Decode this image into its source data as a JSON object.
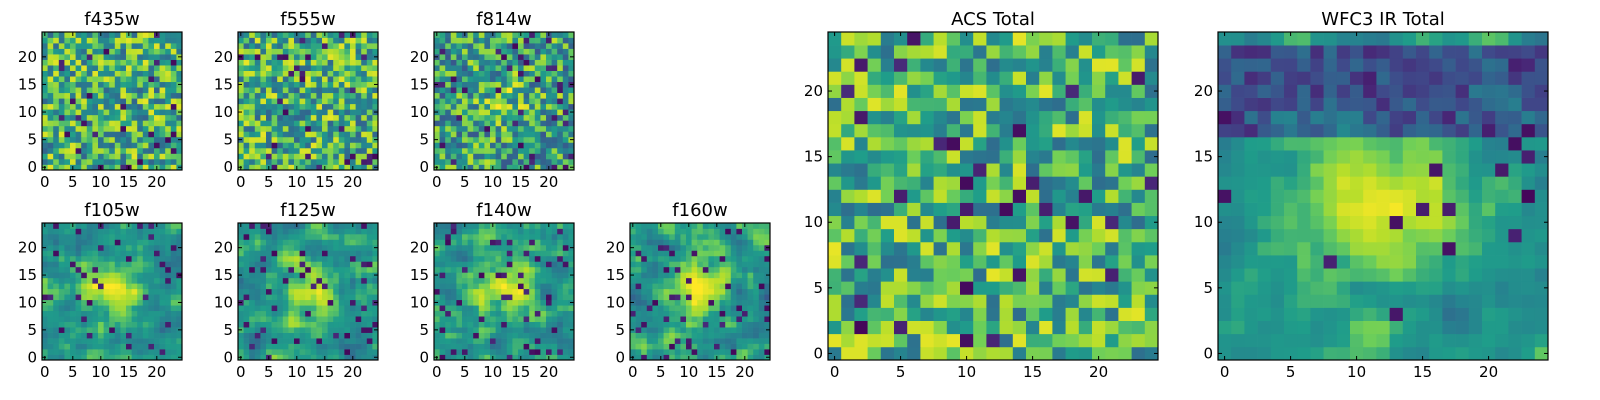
{
  "colormap": "viridis",
  "colormap_stops": [
    "#440154",
    "#482777",
    "#3f4a8a",
    "#31678e",
    "#26838f",
    "#1f9d8a",
    "#6cce5a",
    "#b6de2b",
    "#fee825"
  ],
  "axes_color": "#000000",
  "chart_data": [
    {
      "type": "heatmap",
      "title": "f435w",
      "grid_size": 25,
      "xticks": [
        "0",
        "5",
        "10",
        "15",
        "20"
      ],
      "yticks": [
        "0",
        "5",
        "10",
        "15",
        "20"
      ],
      "xlim": [
        -0.5,
        24.5
      ],
      "ylim": [
        -0.5,
        24.5
      ],
      "grid": false,
      "pattern": "noise",
      "values_note": "per-pixel values not labeled"
    },
    {
      "type": "heatmap",
      "title": "f555w",
      "grid_size": 25,
      "xticks": [
        "0",
        "5",
        "10",
        "15",
        "20"
      ],
      "yticks": [
        "0",
        "5",
        "10",
        "15",
        "20"
      ],
      "xlim": [
        -0.5,
        24.5
      ],
      "ylim": [
        -0.5,
        24.5
      ],
      "grid": false,
      "pattern": "noise"
    },
    {
      "type": "heatmap",
      "title": "f814w",
      "grid_size": 25,
      "xticks": [
        "0",
        "5",
        "10",
        "15",
        "20"
      ],
      "yticks": [
        "0",
        "5",
        "10",
        "15",
        "20"
      ],
      "xlim": [
        -0.5,
        24.5
      ],
      "ylim": [
        -0.5,
        24.5
      ],
      "grid": false,
      "pattern": "faint central source"
    },
    {
      "type": "heatmap",
      "title": "f105w",
      "grid_size": 25,
      "xticks": [
        "0",
        "5",
        "10",
        "15",
        "20"
      ],
      "yticks": [
        "0",
        "5",
        "10",
        "15",
        "20"
      ],
      "xlim": [
        -0.5,
        24.5
      ],
      "ylim": [
        -0.5,
        24.5
      ],
      "grid": false,
      "pattern": "central source"
    },
    {
      "type": "heatmap",
      "title": "f125w",
      "grid_size": 25,
      "xticks": [
        "0",
        "5",
        "10",
        "15",
        "20"
      ],
      "yticks": [
        "0",
        "5",
        "10",
        "15",
        "20"
      ],
      "xlim": [
        -0.5,
        24.5
      ],
      "ylim": [
        -0.5,
        24.5
      ],
      "grid": false,
      "pattern": "central source"
    },
    {
      "type": "heatmap",
      "title": "f140w",
      "grid_size": 25,
      "xticks": [
        "0",
        "5",
        "10",
        "15",
        "20"
      ],
      "yticks": [
        "0",
        "5",
        "10",
        "15",
        "20"
      ],
      "xlim": [
        -0.5,
        24.5
      ],
      "ylim": [
        -0.5,
        24.5
      ],
      "grid": false,
      "pattern": "central source"
    },
    {
      "type": "heatmap",
      "title": "f160w",
      "grid_size": 25,
      "xticks": [
        "0",
        "5",
        "10",
        "15",
        "20"
      ],
      "yticks": [
        "0",
        "5",
        "10",
        "15",
        "20"
      ],
      "xlim": [
        -0.5,
        24.5
      ],
      "ylim": [
        -0.5,
        24.5
      ],
      "grid": false,
      "pattern": "central source"
    },
    {
      "type": "heatmap",
      "title": "ACS Total",
      "grid_size": 25,
      "xticks": [
        "0",
        "5",
        "10",
        "15",
        "20"
      ],
      "yticks": [
        "0",
        "5",
        "10",
        "15",
        "20"
      ],
      "xlim": [
        -0.5,
        24.5
      ],
      "ylim": [
        -0.5,
        24.5
      ],
      "grid": false,
      "pattern": "noise"
    },
    {
      "type": "heatmap",
      "title": "WFC3 IR Total",
      "grid_size": 25,
      "xticks": [
        "0",
        "5",
        "10",
        "15",
        "20"
      ],
      "yticks": [
        "0",
        "5",
        "10",
        "15",
        "20"
      ],
      "xlim": [
        -0.5,
        24.5
      ],
      "ylim": [
        -0.5,
        24.5
      ],
      "grid": false,
      "pattern": "central source, dark band at top"
    }
  ]
}
